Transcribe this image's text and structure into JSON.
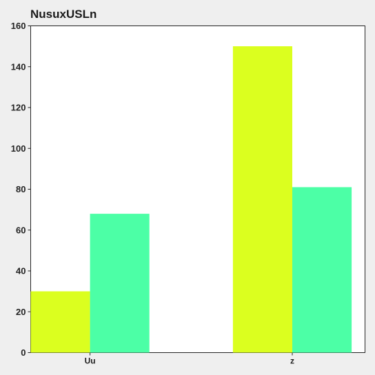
{
  "chart_data": {
    "type": "bar",
    "title": "NusuxUSLn",
    "xlabel": "",
    "ylabel": "",
    "categories": [
      "Uu",
      "z"
    ],
    "series": [
      {
        "values": [
          30,
          150
        ],
        "color": "#dbff1f"
      },
      {
        "values": [
          68,
          81
        ],
        "color": "#4cffa6"
      }
    ],
    "ylim": [
      0,
      160
    ],
    "yticks": [
      0,
      20,
      40,
      60,
      80,
      100,
      120,
      140,
      160
    ],
    "grid": false,
    "legend": "none"
  },
  "colors": {
    "background": "#efefef",
    "plot_background": "#ffffff",
    "axis": "#222222"
  }
}
